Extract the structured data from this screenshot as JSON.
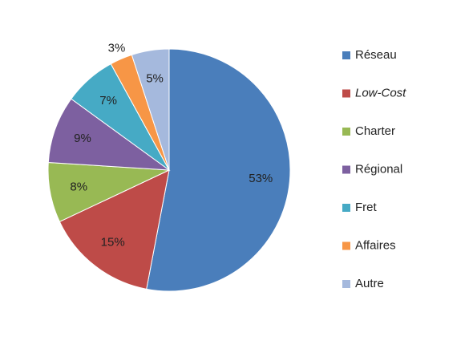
{
  "chart_data": {
    "type": "pie",
    "categories": [
      "Réseau",
      "Low-Cost",
      "Charter",
      "Régional",
      "Fret",
      "Affaires",
      "Autre"
    ],
    "values": [
      53,
      15,
      8,
      9,
      7,
      3,
      5
    ],
    "value_labels": [
      "53%",
      "15%",
      "8%",
      "9%",
      "7%",
      "3%",
      "5%"
    ],
    "colors": [
      "#4a7ebb",
      "#be4b48",
      "#98b954",
      "#7d60a0",
      "#46aac5",
      "#f79646",
      "#a5b9dd"
    ],
    "legend": "right"
  }
}
